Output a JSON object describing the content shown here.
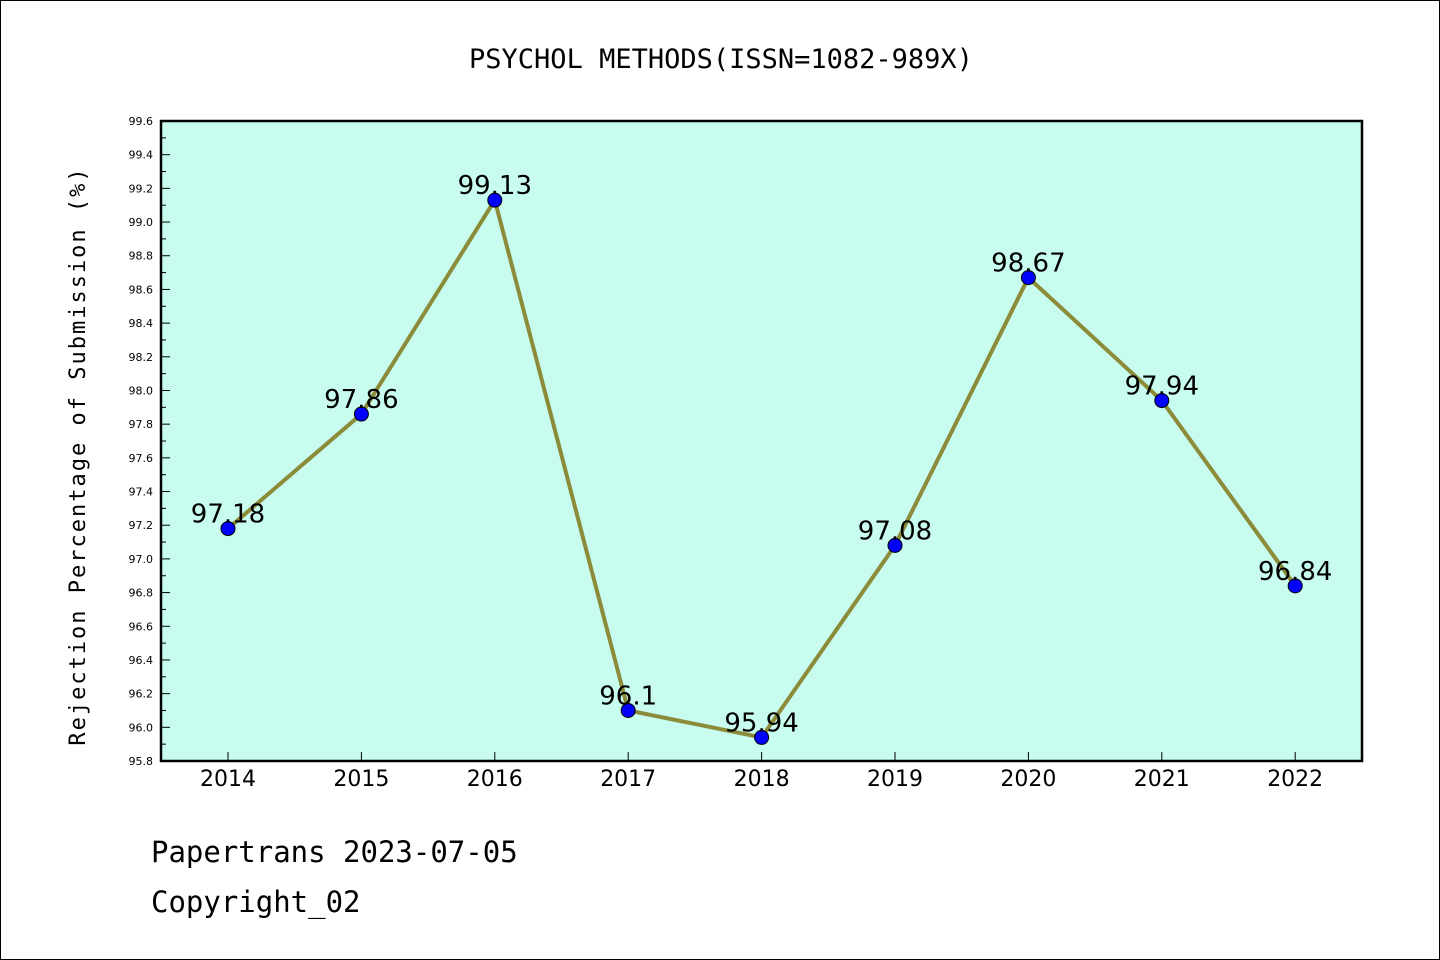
{
  "chart_data": {
    "type": "line",
    "title": "PSYCHOL METHODS(ISSN=1082-989X)",
    "xlabel": "",
    "ylabel": "Rejection Percentage of Submission (%)",
    "categories": [
      "2014",
      "2015",
      "2016",
      "2017",
      "2018",
      "2019",
      "2020",
      "2021",
      "2022"
    ],
    "series": [
      {
        "values": [
          97.18,
          97.86,
          99.13,
          96.1,
          95.94,
          97.08,
          98.67,
          97.94,
          96.84
        ],
        "labels": [
          "97.18",
          "97.86",
          "99.13",
          "96.1",
          "95.94",
          "97.08",
          "98.67",
          "97.94",
          "96.84"
        ]
      }
    ],
    "ylim": [
      95.8,
      99.6
    ],
    "yticks": [
      "95.8",
      "96.0",
      "96.2",
      "96.4",
      "96.6",
      "96.8",
      "97.0",
      "97.2",
      "97.4",
      "97.6",
      "97.8",
      "98.0",
      "98.2",
      "98.4",
      "98.6",
      "98.8",
      "99.0",
      "99.2",
      "99.4",
      "99.6"
    ],
    "grid": false,
    "colors": {
      "plot_background": "#c8fcee",
      "line": "#8b8b3a",
      "marker": "#0000ff"
    }
  },
  "footer": {
    "line1": "Papertrans 2023-07-05",
    "line2": "Copyright_02"
  }
}
